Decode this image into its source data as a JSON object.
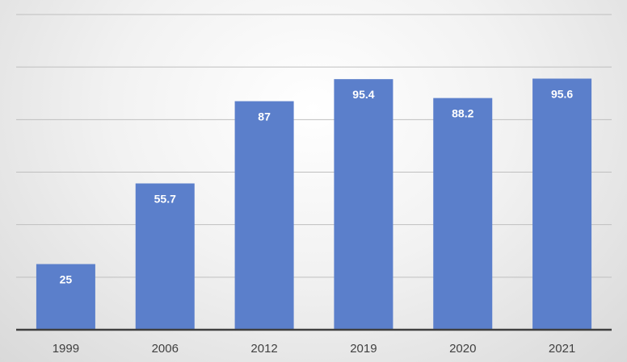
{
  "chart_data": {
    "type": "bar",
    "categories": [
      "1999",
      "2006",
      "2012",
      "2019",
      "2020",
      "2021"
    ],
    "values": [
      25,
      55.7,
      87,
      95.4,
      88.2,
      95.6
    ],
    "data_labels": [
      "25",
      "55.7",
      "87",
      "95.4",
      "88.2",
      "95.6"
    ],
    "title": "",
    "xlabel": "",
    "ylabel": "",
    "ylim": [
      0,
      120
    ],
    "grid": true,
    "legend": "none",
    "bar_color": "#5b7fcb",
    "label_color": "#ffffff"
  }
}
